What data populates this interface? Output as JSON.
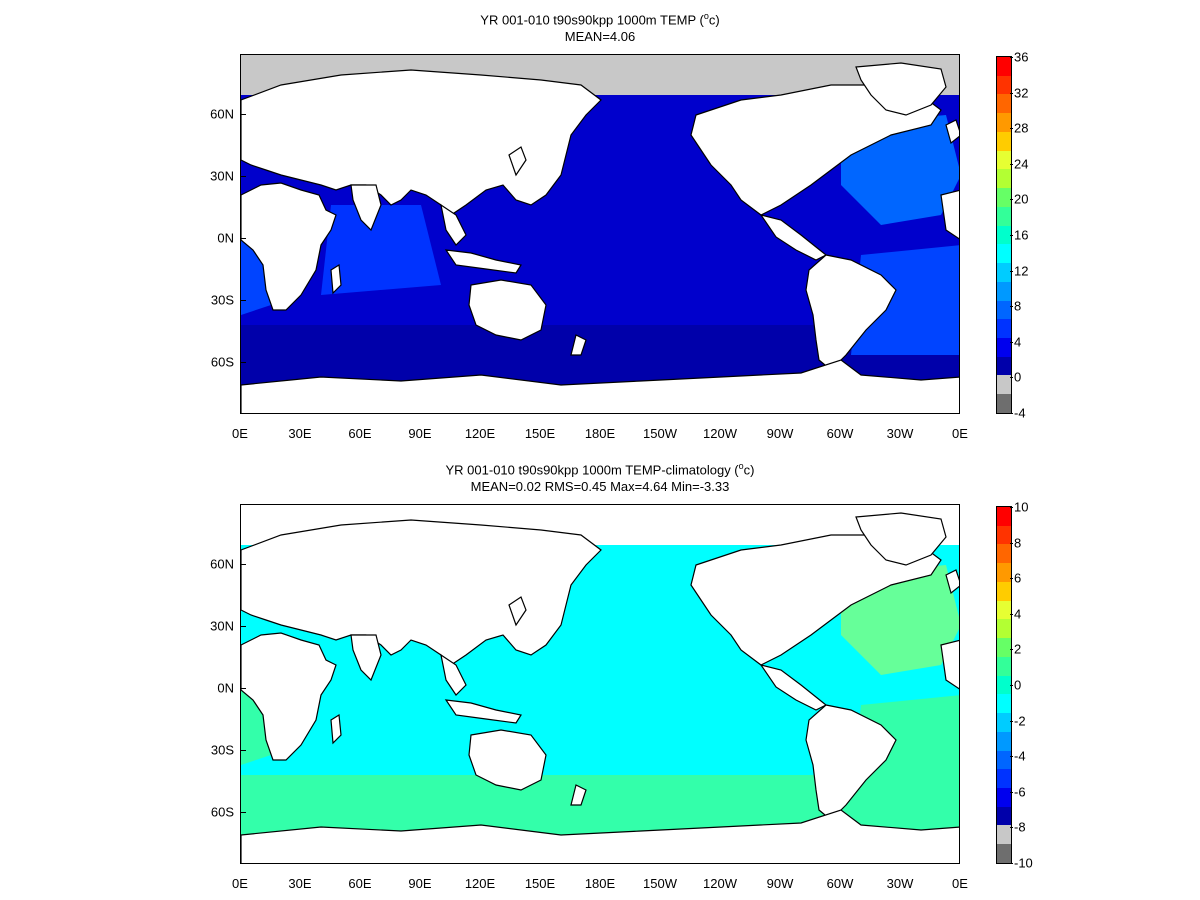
{
  "panels": [
    {
      "title_line1_prefix": "YR 001-010 t90s90kpp 1000m TEMP (",
      "title_line1_sup": "o",
      "title_line1_suffix": "c)",
      "title_line2": "MEAN=4.06",
      "colorbar": {
        "labels": [
          "36",
          "32",
          "28",
          "24",
          "20",
          "16",
          "12",
          "8",
          "4",
          "0",
          "-4"
        ],
        "colors": [
          "#ff0000",
          "#ff3300",
          "#ff6600",
          "#ff9900",
          "#ffcc00",
          "#e6ff33",
          "#b3ff33",
          "#66ff66",
          "#33ff99",
          "#00ffcc",
          "#00ffff",
          "#00ccff",
          "#0099ff",
          "#0066ff",
          "#0033ff",
          "#0000ee",
          "#0000aa",
          "#c8c8c8",
          "#6e6e6e"
        ]
      },
      "ocean": {
        "arctic": "#c8c8c8",
        "main": "#0000cc",
        "south": "#0000aa",
        "indian": "#0033ff",
        "atlantic": "#0044ff",
        "atlantic_n": "#0066ff"
      }
    },
    {
      "title_line1_prefix": "YR 001-010 t90s90kpp 1000m TEMP-climatology (",
      "title_line1_sup": "o",
      "title_line1_suffix": "c)",
      "title_line2": "MEAN=0.02   RMS=0.45   Max=4.64   Min=-3.33",
      "colorbar": {
        "labels": [
          "10",
          "8",
          "6",
          "4",
          "2",
          "0",
          "-2",
          "-4",
          "-6",
          "-8",
          "-10"
        ],
        "colors": [
          "#ff0000",
          "#ff3300",
          "#ff6600",
          "#ff9900",
          "#ffcc00",
          "#e6ff33",
          "#b3ff33",
          "#66ff66",
          "#33ff99",
          "#00ffcc",
          "#00ffff",
          "#00ccff",
          "#0099ff",
          "#0066ff",
          "#0033ff",
          "#0000ee",
          "#0000aa",
          "#c8c8c8",
          "#6e6e6e"
        ]
      },
      "ocean": {
        "arctic": "#ffffff",
        "main": "#00ffff",
        "south": "#33ffaa",
        "indian": "#00ffff",
        "atlantic": "#33ffaa",
        "atlantic_n": "#66ff99"
      }
    }
  ],
  "x_labels": [
    "0E",
    "30E",
    "60E",
    "90E",
    "120E",
    "150E",
    "180E",
    "150W",
    "120W",
    "90W",
    "60W",
    "30W",
    "0E"
  ],
  "y_labels": [
    "60N",
    "30N",
    "0N",
    "30S",
    "60S"
  ]
}
